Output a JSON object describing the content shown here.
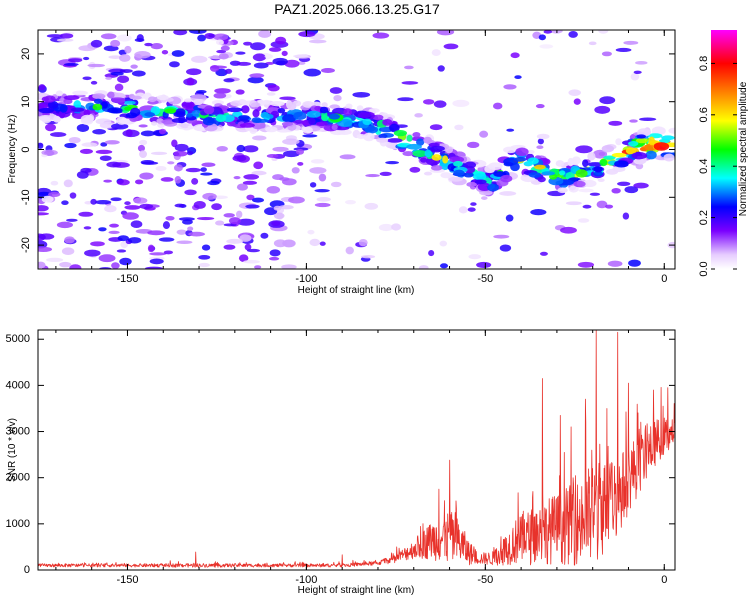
{
  "title": "PAZ1.2025.066.13.25.G17",
  "chart_data": [
    {
      "type": "heatmap",
      "xlabel": "Height of straight line (km)",
      "ylabel": "Frequency (Hz)",
      "xlim": [
        -175,
        3
      ],
      "ylim": [
        -25,
        25
      ],
      "xticks": [
        -150,
        -100,
        -50,
        0
      ],
      "yticks": [
        -20,
        -10,
        0,
        10,
        20
      ],
      "colorbar": {
        "label": "Normalized spectral amplitude",
        "range": [
          0,
          0.93
        ],
        "ticks": [
          0.0,
          0.2,
          0.4,
          0.6,
          0.8
        ],
        "tick_labels": [
          "0.0",
          "0.2",
          "0.4",
          "0.6",
          "0.8"
        ]
      },
      "ridge": {
        "x": [
          -170,
          -155,
          -140,
          -125,
          -110,
          -100,
          -90,
          -80,
          -70,
          -62,
          -55,
          -48,
          -42,
          -35,
          -28,
          -20,
          -12,
          -5,
          0,
          3
        ],
        "y": [
          9,
          9,
          8,
          7,
          7,
          7,
          6.5,
          5,
          1,
          -2,
          -5,
          -7,
          -2,
          -4,
          -6,
          -4,
          -1,
          1,
          1,
          1
        ],
        "amplitude": [
          0.3,
          0.45,
          0.45,
          0.4,
          0.35,
          0.35,
          0.45,
          0.5,
          0.6,
          0.55,
          0.5,
          0.4,
          0.55,
          0.6,
          0.5,
          0.5,
          0.65,
          0.85,
          0.9,
          0.85
        ]
      }
    },
    {
      "type": "line",
      "xlabel": "Height of straight line (km)",
      "ylabel": "SNR (10 * v/v)",
      "xlim": [
        -175,
        3
      ],
      "ylim": [
        0,
        5200
      ],
      "xticks": [
        -150,
        -100,
        -50,
        0
      ],
      "yticks": [
        0,
        1000,
        2000,
        3000,
        4000,
        5000
      ],
      "color": "#e8322b",
      "envelope": {
        "x": [
          -175,
          -150,
          -130,
          -110,
          -90,
          -80,
          -75,
          -70,
          -65,
          -60,
          -57,
          -55,
          -52,
          -48,
          -45,
          -42,
          -38,
          -35,
          -30,
          -25,
          -22,
          -20,
          -18,
          -15,
          -12,
          -10,
          -5,
          -2,
          0,
          3
        ],
        "base": [
          100,
          100,
          100,
          100,
          100,
          150,
          250,
          450,
          650,
          700,
          600,
          400,
          250,
          250,
          400,
          600,
          700,
          800,
          900,
          1000,
          1100,
          1200,
          1300,
          1500,
          1700,
          2000,
          2500,
          2800,
          2900,
          3000
        ],
        "amp": [
          60,
          60,
          70,
          60,
          60,
          80,
          150,
          350,
          700,
          1000,
          800,
          500,
          200,
          250,
          500,
          800,
          1000,
          1100,
          1300,
          1500,
          1700,
          2000,
          1800,
          1600,
          1400,
          1300,
          900,
          800,
          700,
          500
        ]
      },
      "spikes": [
        {
          "x": -131,
          "y": 390
        },
        {
          "x": -90,
          "y": 330
        },
        {
          "x": -60,
          "y": 2380
        },
        {
          "x": -63,
          "y": 1750
        },
        {
          "x": -34,
          "y": 4150
        },
        {
          "x": -29,
          "y": 3350
        },
        {
          "x": -26,
          "y": 3100
        },
        {
          "x": -22,
          "y": 3700
        },
        {
          "x": -19,
          "y": 5200
        },
        {
          "x": -16,
          "y": 3500
        },
        {
          "x": -13,
          "y": 5150
        },
        {
          "x": -10,
          "y": 4050
        },
        {
          "x": -7,
          "y": 3050
        },
        {
          "x": -3,
          "y": 3900
        },
        {
          "x": 1,
          "y": 3950
        }
      ]
    }
  ]
}
